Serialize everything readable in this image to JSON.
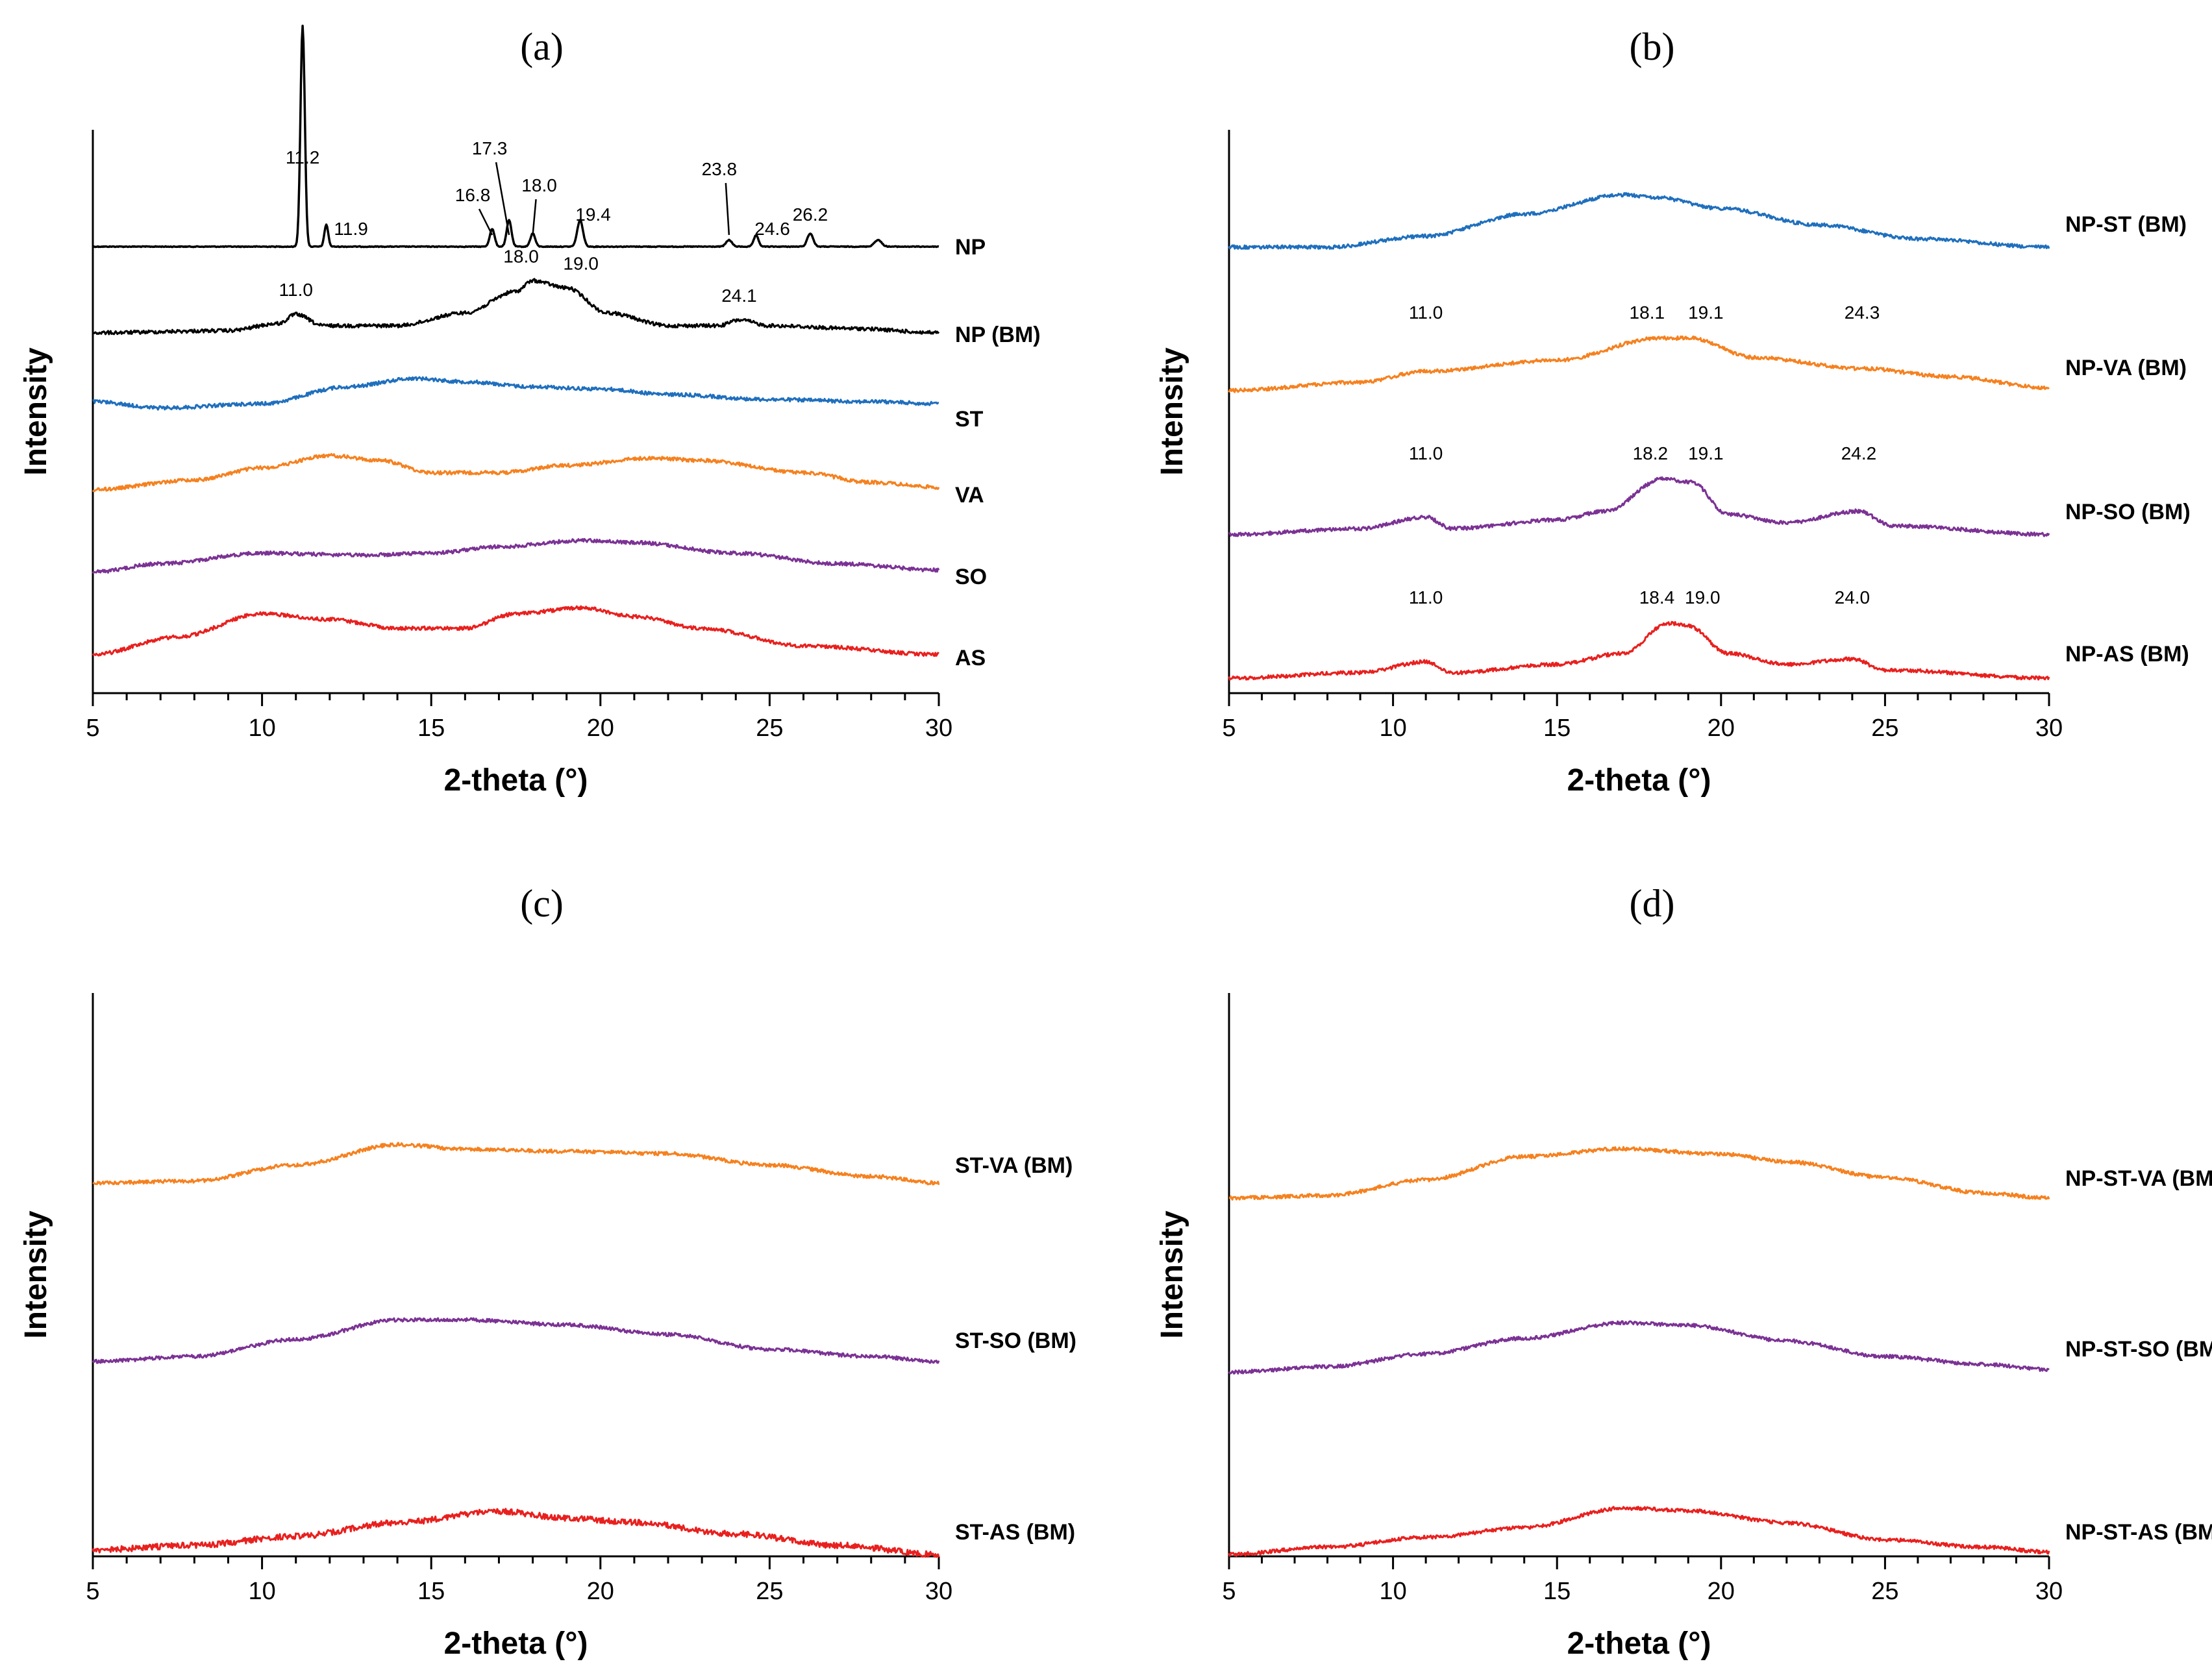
{
  "figure": {
    "panels": [
      {
        "id": "a",
        "label": "(a)",
        "xlabel": "2-theta (°)",
        "ylabel": "Intensity",
        "xlim": [
          5,
          30
        ],
        "xticks": [
          "5",
          "10",
          "15",
          "20",
          "25",
          "30"
        ],
        "series": [
          {
            "name": "NP",
            "color": "#000000",
            "peaks": [
              {
                "label": "11.2",
                "x": 11.2
              },
              {
                "label": "11.9",
                "x": 11.9
              },
              {
                "label": "16.8",
                "x": 16.8
              },
              {
                "label": "17.3",
                "x": 17.3
              },
              {
                "label": "18.0",
                "x": 18.0
              },
              {
                "label": "19.4",
                "x": 19.4
              },
              {
                "label": "23.8",
                "x": 23.8
              },
              {
                "label": "24.6",
                "x": 24.6
              },
              {
                "label": "26.2",
                "x": 26.2
              }
            ]
          },
          {
            "name": "NP (BM)",
            "color": "#000000",
            "peaks": [
              {
                "label": "11.0",
                "x": 11.0
              },
              {
                "label": "18.0",
                "x": 18.0
              },
              {
                "label": "19.0",
                "x": 19.0
              },
              {
                "label": "24.1",
                "x": 24.1
              }
            ]
          },
          {
            "name": "ST",
            "color": "#1f6fbd",
            "peaks": []
          },
          {
            "name": "VA",
            "color": "#f5811f",
            "peaks": []
          },
          {
            "name": "SO",
            "color": "#7b3294",
            "peaks": []
          },
          {
            "name": "AS",
            "color": "#e8201e",
            "peaks": []
          }
        ]
      },
      {
        "id": "b",
        "label": "(b)",
        "xlabel": "2-theta (°)",
        "ylabel": "Intensity",
        "xlim": [
          5,
          30
        ],
        "xticks": [
          "5",
          "10",
          "15",
          "20",
          "25",
          "30"
        ],
        "series": [
          {
            "name": "NP-ST (BM)",
            "color": "#1f6fbd",
            "peaks": []
          },
          {
            "name": "NP-VA (BM)",
            "color": "#f5811f",
            "peaks": [
              {
                "label": "11.0",
                "x": 11.0
              },
              {
                "label": "18.1",
                "x": 18.1
              },
              {
                "label": "19.1",
                "x": 19.1
              },
              {
                "label": "24.3",
                "x": 24.3
              }
            ]
          },
          {
            "name": "NP-SO (BM)",
            "color": "#7b3294",
            "peaks": [
              {
                "label": "11.0",
                "x": 11.0
              },
              {
                "label": "18.2",
                "x": 18.2
              },
              {
                "label": "19.1",
                "x": 19.1
              },
              {
                "label": "24.2",
                "x": 24.2
              }
            ]
          },
          {
            "name": "NP-AS (BM)",
            "color": "#e8201e",
            "peaks": [
              {
                "label": "11.0",
                "x": 11.0
              },
              {
                "label": "18.4",
                "x": 18.4
              },
              {
                "label": "19.0",
                "x": 19.0
              },
              {
                "label": "24.0",
                "x": 24.0
              }
            ]
          }
        ]
      },
      {
        "id": "c",
        "label": "(c)",
        "xlabel": "2-theta (°)",
        "ylabel": "Intensity",
        "xlim": [
          5,
          30
        ],
        "xticks": [
          "5",
          "10",
          "15",
          "20",
          "25",
          "30"
        ],
        "series": [
          {
            "name": "ST-VA (BM)",
            "color": "#f5811f",
            "peaks": []
          },
          {
            "name": "ST-SO (BM)",
            "color": "#7b3294",
            "peaks": []
          },
          {
            "name": "ST-AS (BM)",
            "color": "#e8201e",
            "peaks": []
          }
        ]
      },
      {
        "id": "d",
        "label": "(d)",
        "xlabel": "2-theta (°)",
        "ylabel": "Intensity",
        "xlim": [
          5,
          30
        ],
        "xticks": [
          "5",
          "10",
          "15",
          "20",
          "25",
          "30"
        ],
        "series": [
          {
            "name": "NP-ST-VA (BM)",
            "color": "#f5811f",
            "peaks": []
          },
          {
            "name": "NP-ST-SO (BM)",
            "color": "#7b3294",
            "peaks": []
          },
          {
            "name": "NP-ST-AS (BM)",
            "color": "#e8201e",
            "peaks": []
          }
        ]
      }
    ]
  },
  "chart_data": [
    {
      "type": "line",
      "title": "(a)",
      "xlabel": "2-theta (°)",
      "ylabel": "Intensity",
      "xlim": [
        5,
        30
      ],
      "grid": false,
      "series": [
        {
          "name": "NP",
          "x": [
            5,
            10,
            11.0,
            11.2,
            11.4,
            11.9,
            16.8,
            17.3,
            18.0,
            19.4,
            23.8,
            24.6,
            26.2,
            28.2,
            30
          ],
          "values": [
            0,
            0,
            0.05,
            1.0,
            0.05,
            0.1,
            0.08,
            0.12,
            0.06,
            0.12,
            0.03,
            0.05,
            0.06,
            0.03,
            0
          ]
        },
        {
          "name": "NP (BM)",
          "x": [
            5,
            9,
            10.5,
            11.0,
            11.8,
            14,
            16,
            17.5,
            18.0,
            19.0,
            20.2,
            22,
            23.5,
            24.1,
            25,
            27.5,
            30
          ],
          "values": [
            0.02,
            0.05,
            0.15,
            0.28,
            0.12,
            0.12,
            0.3,
            0.6,
            0.75,
            0.65,
            0.3,
            0.12,
            0.12,
            0.2,
            0.12,
            0.08,
            0.02
          ]
        },
        {
          "name": "ST",
          "x": [
            5,
            7,
            10,
            12.5,
            14.5,
            16,
            18,
            20,
            22,
            25,
            28,
            30
          ],
          "values": [
            0.25,
            0.1,
            0.2,
            0.6,
            0.8,
            0.72,
            0.6,
            0.55,
            0.42,
            0.3,
            0.25,
            0.2
          ]
        },
        {
          "name": "VA",
          "x": [
            5,
            8,
            10,
            12,
            13.5,
            15,
            17,
            19,
            21.5,
            23,
            26,
            28,
            30
          ],
          "values": [
            0.1,
            0.3,
            0.55,
            0.8,
            0.7,
            0.45,
            0.45,
            0.6,
            0.75,
            0.7,
            0.45,
            0.25,
            0.15
          ]
        },
        {
          "name": "SO",
          "x": [
            5,
            7,
            10,
            13,
            15,
            17,
            19.5,
            21,
            24,
            27,
            30
          ],
          "values": [
            0.1,
            0.3,
            0.55,
            0.5,
            0.55,
            0.7,
            0.85,
            0.8,
            0.55,
            0.3,
            0.15
          ]
        },
        {
          "name": "AS",
          "x": [
            5,
            7.5,
            10,
            12,
            14,
            16,
            17.5,
            19.5,
            21,
            23,
            26,
            30
          ],
          "values": [
            0.05,
            0.35,
            0.75,
            0.65,
            0.5,
            0.5,
            0.75,
            0.85,
            0.7,
            0.5,
            0.2,
            0.05
          ]
        }
      ]
    },
    {
      "type": "line",
      "title": "(b)",
      "xlabel": "2-theta (°)",
      "ylabel": "Intensity",
      "xlim": [
        5,
        30
      ],
      "grid": false,
      "series": [
        {
          "name": "NP-ST (BM)",
          "x": [
            5,
            8,
            11,
            14,
            17,
            18,
            20,
            23,
            26,
            30
          ],
          "values": [
            0.05,
            0.05,
            0.25,
            0.65,
            1.0,
            0.95,
            0.75,
            0.45,
            0.2,
            0.05
          ]
        },
        {
          "name": "NP-VA (BM)",
          "x": [
            5,
            9,
            11.0,
            15,
            18.1,
            19.1,
            21,
            24.3,
            27,
            30
          ],
          "values": [
            0.05,
            0.2,
            0.4,
            0.6,
            1.0,
            1.0,
            0.65,
            0.45,
            0.3,
            0.1
          ]
        },
        {
          "name": "NP-SO (BM)",
          "x": [
            5,
            9,
            11.0,
            11.8,
            15,
            16.5,
            18.2,
            19.1,
            20.2,
            22,
            24.2,
            25.2,
            30
          ],
          "values": [
            0.05,
            0.15,
            0.35,
            0.15,
            0.3,
            0.45,
            1.0,
            0.95,
            0.4,
            0.25,
            0.45,
            0.2,
            0.05
          ]
        },
        {
          "name": "NP-AS (BM)",
          "x": [
            5,
            9,
            11.0,
            11.8,
            15,
            17,
            18.4,
            19.0,
            20.2,
            22,
            24.0,
            25,
            30
          ],
          "values": [
            0.0,
            0.1,
            0.3,
            0.1,
            0.25,
            0.45,
            1.0,
            0.95,
            0.45,
            0.25,
            0.35,
            0.15,
            0.0
          ]
        }
      ]
    },
    {
      "type": "line",
      "title": "(c)",
      "xlabel": "2-theta (°)",
      "ylabel": "Intensity",
      "xlim": [
        5,
        30
      ],
      "grid": false,
      "series": [
        {
          "name": "ST-VA (BM)",
          "x": [
            5,
            8,
            11,
            14,
            16,
            19,
            22,
            25,
            28,
            30
          ],
          "values": [
            0.1,
            0.15,
            0.5,
            0.95,
            0.85,
            0.8,
            0.75,
            0.5,
            0.25,
            0.1
          ]
        },
        {
          "name": "ST-SO (BM)",
          "x": [
            5,
            8,
            11,
            14,
            16,
            19,
            22,
            25,
            28,
            30
          ],
          "values": [
            0.1,
            0.2,
            0.55,
            0.95,
            0.95,
            0.85,
            0.65,
            0.35,
            0.2,
            0.1
          ]
        },
        {
          "name": "ST-AS (BM)",
          "x": [
            5,
            8,
            11,
            14,
            17,
            19,
            21,
            24,
            27,
            30
          ],
          "values": [
            0.1,
            0.2,
            0.4,
            0.7,
            0.95,
            0.8,
            0.7,
            0.45,
            0.2,
            0.0
          ]
        }
      ]
    },
    {
      "type": "line",
      "title": "(d)",
      "xlabel": "2-theta (°)",
      "ylabel": "Intensity",
      "xlim": [
        5,
        30
      ],
      "grid": false,
      "series": [
        {
          "name": "NP-ST-VA (BM)",
          "x": [
            5,
            8,
            11,
            14,
            17,
            20,
            22,
            25,
            28,
            30
          ],
          "values": [
            0.05,
            0.1,
            0.4,
            0.85,
            1.0,
            0.9,
            0.75,
            0.45,
            0.15,
            0.05
          ]
        },
        {
          "name": "NP-ST-SO (BM)",
          "x": [
            5,
            8,
            11,
            14,
            17,
            19,
            22,
            25,
            28,
            30
          ],
          "values": [
            0.05,
            0.15,
            0.4,
            0.7,
            1.0,
            0.95,
            0.65,
            0.35,
            0.2,
            0.1
          ]
        },
        {
          "name": "NP-ST-AS (BM)",
          "x": [
            5,
            8,
            11,
            14,
            17,
            19,
            22,
            25,
            28,
            30
          ],
          "values": [
            0.0,
            0.15,
            0.35,
            0.55,
            0.95,
            0.9,
            0.65,
            0.3,
            0.15,
            0.05
          ]
        }
      ]
    }
  ]
}
